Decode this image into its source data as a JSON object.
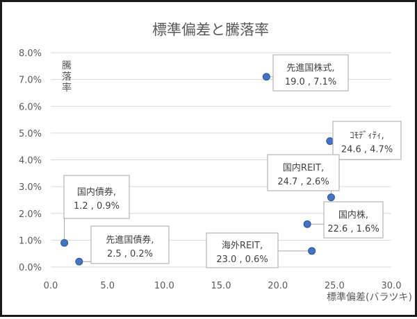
{
  "chart_data": {
    "type": "scatter",
    "title": "標準偏差と騰落率",
    "xlabel": "標準偏差(バラツキ)",
    "ylabel": "騰落率",
    "xlim": [
      0,
      30
    ],
    "ylim": [
      0,
      8
    ],
    "x_ticks": [
      "0.0",
      "5.0",
      "10.0",
      "15.0",
      "20.0",
      "25.0",
      "30.0"
    ],
    "y_ticks": [
      "0.0%",
      "1.0%",
      "2.0%",
      "3.0%",
      "4.0%",
      "5.0%",
      "6.0%",
      "7.0%",
      "8.0%"
    ],
    "grid": "horizontal",
    "legend": "none",
    "point_color": "#4472c4",
    "points": [
      {
        "label": "国内債券,",
        "value_text": "1.2 , 0.9%",
        "x": 1.2,
        "y": 0.9
      },
      {
        "label": "先進国債券,",
        "value_text": "2.5 , 0.2%",
        "x": 2.5,
        "y": 0.2
      },
      {
        "label": "先進国株式,",
        "value_text": "19.0 , 7.1%",
        "x": 19.0,
        "y": 7.1
      },
      {
        "label": "海外REIT,",
        "value_text": "23.0 , 0.6%",
        "x": 23.0,
        "y": 0.6
      },
      {
        "label": "国内株,",
        "value_text": "22.6 , 1.6%",
        "x": 22.6,
        "y": 1.6
      },
      {
        "label": "ｺﾓﾃﾞｨﾃｨ,",
        "value_text": "24.6 , 4.7%",
        "x": 24.6,
        "y": 4.7
      },
      {
        "label": "国内REIT,",
        "value_text": "24.7 , 2.6%",
        "x": 24.7,
        "y": 2.6
      }
    ]
  }
}
